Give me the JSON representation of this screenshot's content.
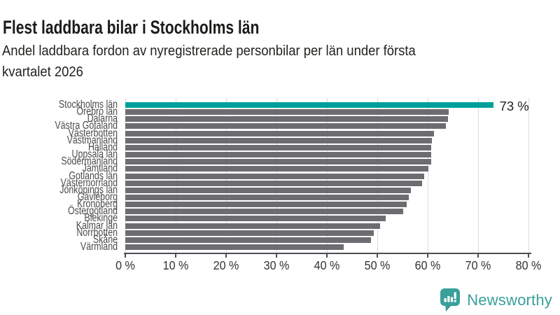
{
  "header": {
    "title": "Flest laddbara bilar i Stockholms län",
    "subtitle_line1": "Andel laddbara fordon av nyregistrerade personbilar per län under första",
    "subtitle_line2": "kvartalet 2026"
  },
  "chart_data": {
    "type": "bar",
    "orientation": "horizontal",
    "title": "Flest laddbara bilar i Stockholms län",
    "subtitle": "Andel laddbara fordon av nyregistrerade personbilar per län under första kvartalet 2026",
    "categories": [
      "Stockholms län",
      "Örebro län",
      "Dalarna",
      "Västra Götaland",
      "Västerbotten",
      "Västmanland",
      "Halland",
      "Uppsala län",
      "Södermanland",
      "Jämtland",
      "Gotlands län",
      "Västernorrland",
      "Jönköpings län",
      "Gävleborg",
      "Kronoberg",
      "Östergötland",
      "Blekinge",
      "Kalmar län",
      "Norrbotten",
      "Skåne",
      "Värmland"
    ],
    "values": [
      73,
      64.2,
      64.0,
      63.6,
      61.2,
      60.8,
      60.7,
      60.7,
      60.7,
      60.1,
      59.3,
      58.9,
      56.6,
      56.2,
      55.9,
      55.1,
      51.6,
      50.6,
      49.3,
      48.7,
      43.4
    ],
    "unit": "%",
    "xlim": [
      0,
      80
    ],
    "xticks": [
      0,
      10,
      20,
      30,
      40,
      50,
      60,
      70,
      80
    ],
    "xtick_labels": [
      "0 %",
      "10 %",
      "20 %",
      "30 %",
      "40 %",
      "50 %",
      "60 %",
      "70 %",
      "80 %"
    ],
    "highlight_index": 0,
    "value_label": "73 %",
    "grid": true,
    "legend": false,
    "colors": {
      "highlight_bar": "#00a09a",
      "bar": "#6c6c71",
      "gridline": "#dcdcdc",
      "axis": "#4d4d52"
    }
  },
  "footer": {
    "brand": "Newsworthy",
    "brand_color": "#38a09a",
    "logo_icon": "newsworthy-speech-bubble-chart-icon"
  }
}
